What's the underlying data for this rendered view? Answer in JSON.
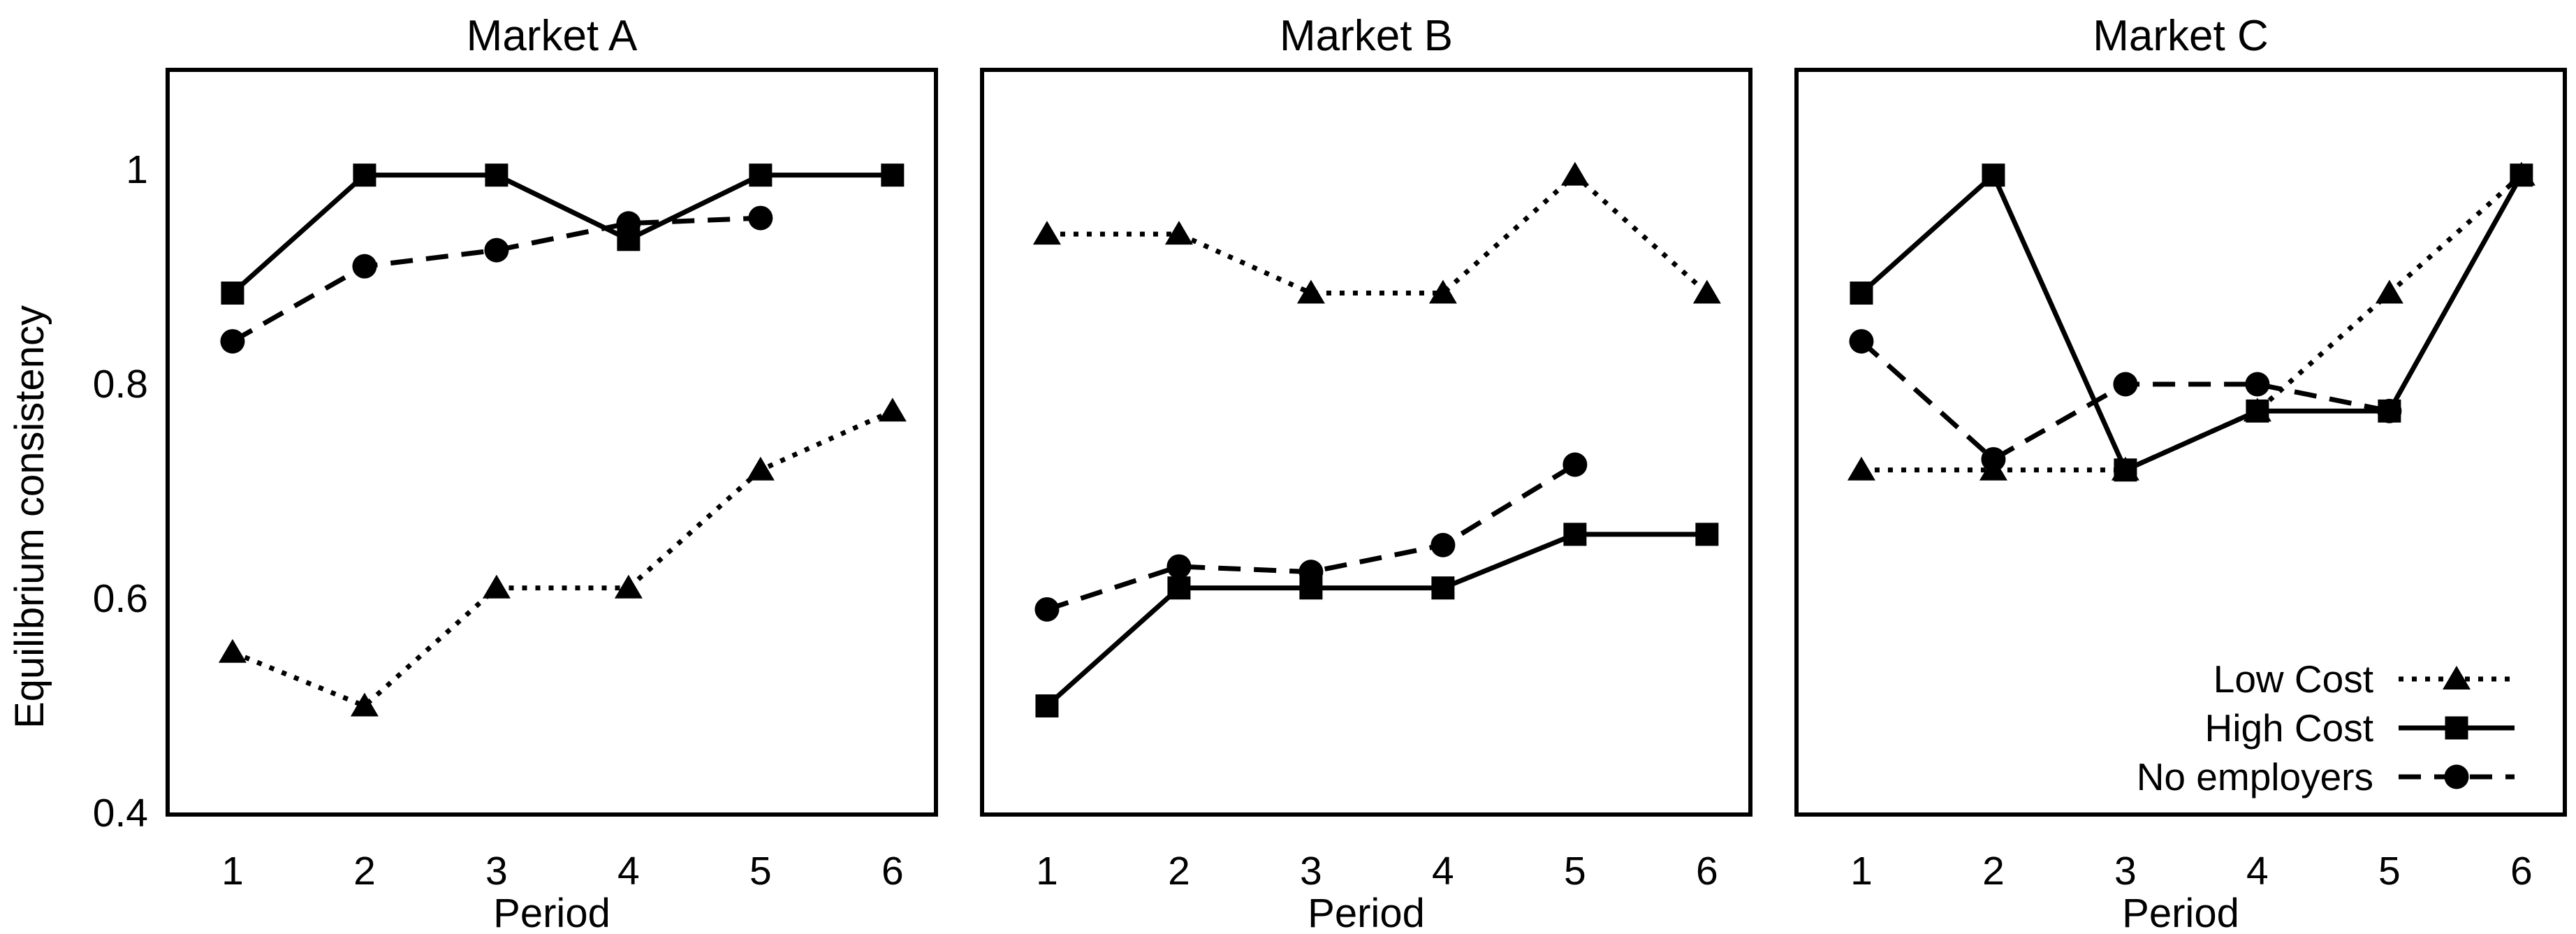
{
  "figure": {
    "ylabel": "Equilibrium consistency",
    "xlabel": "Period",
    "background_color": "#ffffff",
    "ink_color": "#000000",
    "ytick_labels": [
      "1",
      "0.8",
      "0.6",
      "0.4"
    ],
    "xtick_labels": [
      "1",
      "2",
      "3",
      "4",
      "5",
      "6"
    ]
  },
  "legend": {
    "position": "bottom-right-of-market-c",
    "entries": [
      {
        "label": "Low Cost",
        "marker": "triangle",
        "linestyle": "dotted"
      },
      {
        "label": "High Cost",
        "marker": "square",
        "linestyle": "solid"
      },
      {
        "label": "No employers",
        "marker": "circle",
        "linestyle": "dashed"
      }
    ]
  },
  "chart_data": [
    {
      "type": "line",
      "title": "Market A",
      "xlabel": "Period",
      "ylabel": "Equilibrium consistency",
      "x": [
        1,
        2,
        3,
        4,
        5,
        6
      ],
      "yticks": [
        1,
        0.8,
        0.6,
        0.4
      ],
      "ylim": [
        0.397,
        1.092
      ],
      "grid": false,
      "series": [
        {
          "name": "Low Cost",
          "marker": "triangle",
          "linestyle": "dotted",
          "values": [
            0.55,
            0.5,
            0.61,
            0.61,
            0.72,
            0.775
          ]
        },
        {
          "name": "No employers",
          "marker": "circle",
          "linestyle": "dashed",
          "values": [
            0.84,
            0.91,
            0.925,
            0.95,
            0.955,
            null
          ]
        },
        {
          "name": "High Cost",
          "marker": "square",
          "linestyle": "solid",
          "values": [
            0.885,
            0.995,
            0.995,
            0.935,
            0.995,
            0.995
          ]
        }
      ]
    },
    {
      "type": "line",
      "title": "Market B",
      "xlabel": "Period",
      "ylabel": "Equilibrium consistency",
      "x": [
        1,
        2,
        3,
        4,
        5,
        6
      ],
      "yticks": [
        1,
        0.8,
        0.6,
        0.4
      ],
      "ylim": [
        0.397,
        1.092
      ],
      "grid": false,
      "series": [
        {
          "name": "Low Cost",
          "marker": "triangle",
          "linestyle": "dotted",
          "values": [
            0.94,
            0.94,
            0.885,
            0.885,
            0.995,
            0.885
          ]
        },
        {
          "name": "No employers",
          "marker": "circle",
          "linestyle": "dashed",
          "values": [
            0.59,
            0.63,
            0.625,
            0.65,
            0.725,
            null
          ]
        },
        {
          "name": "High Cost",
          "marker": "square",
          "linestyle": "solid",
          "values": [
            0.5,
            0.61,
            0.61,
            0.61,
            0.66,
            0.66
          ]
        }
      ]
    },
    {
      "type": "line",
      "title": "Market C",
      "xlabel": "Period",
      "ylabel": "Equilibrium consistency",
      "x": [
        1,
        2,
        3,
        4,
        5,
        6
      ],
      "yticks": [
        1,
        0.8,
        0.6,
        0.4
      ],
      "ylim": [
        0.397,
        1.092
      ],
      "grid": false,
      "series": [
        {
          "name": "Low Cost",
          "marker": "triangle",
          "linestyle": "dotted",
          "values": [
            0.72,
            0.72,
            0.72,
            0.775,
            0.885,
            0.995
          ]
        },
        {
          "name": "No employers",
          "marker": "circle",
          "linestyle": "dashed",
          "values": [
            0.84,
            0.73,
            0.8,
            0.8,
            0.775,
            null
          ]
        },
        {
          "name": "High Cost",
          "marker": "square",
          "linestyle": "solid",
          "values": [
            0.885,
            0.995,
            0.72,
            0.775,
            0.775,
            0.995
          ]
        }
      ]
    }
  ]
}
